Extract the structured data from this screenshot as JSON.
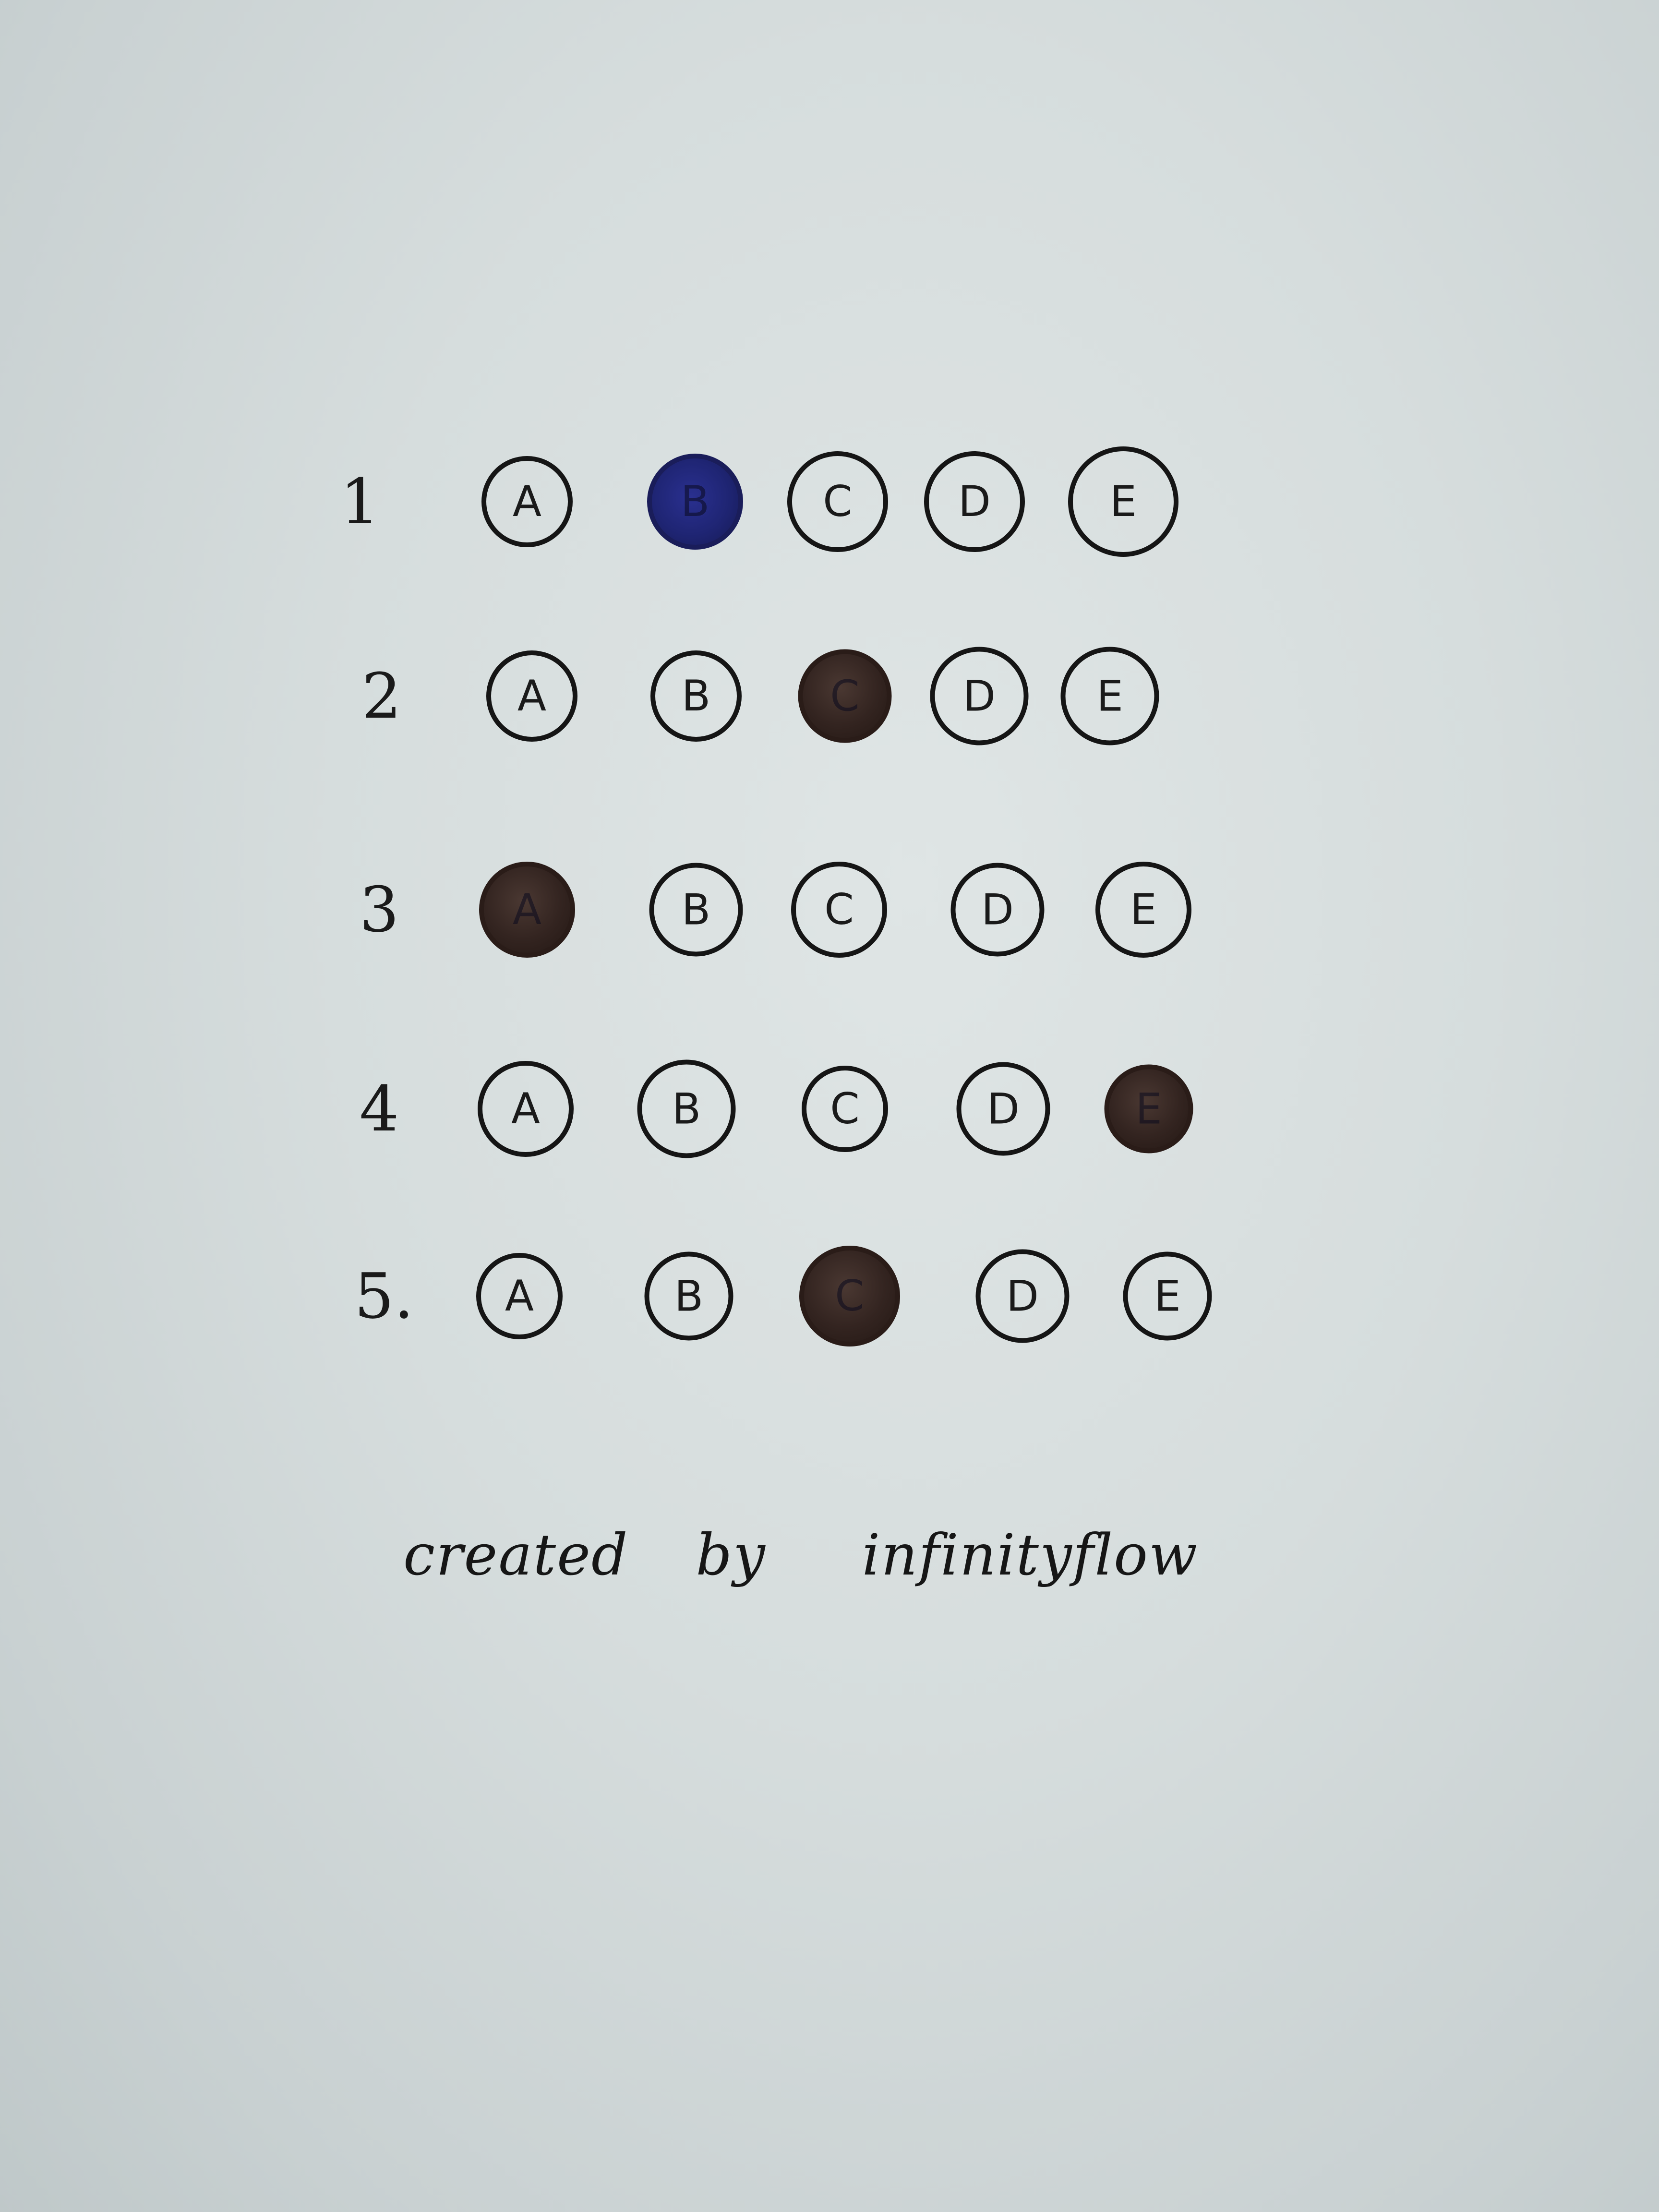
{
  "colors": {
    "paper": "#d6dddd",
    "ink": "#151515",
    "fill_brown": "#332420",
    "fill_blue": "#1f2574"
  },
  "questions": [
    {
      "number": "1",
      "options": [
        "A",
        "B",
        "C",
        "D",
        "E"
      ],
      "marked": "B",
      "marked_color": "blue"
    },
    {
      "number": "2",
      "options": [
        "A",
        "B",
        "C",
        "D",
        "E"
      ],
      "marked": "C",
      "marked_color": "brown"
    },
    {
      "number": "3",
      "options": [
        "A",
        "B",
        "C",
        "D",
        "E"
      ],
      "marked": "A",
      "marked_color": "brown"
    },
    {
      "number": "4",
      "options": [
        "A",
        "B",
        "C",
        "D",
        "E"
      ],
      "marked": "E",
      "marked_color": "brown"
    },
    {
      "number": "5.",
      "options": [
        "A",
        "B",
        "C",
        "D",
        "E"
      ],
      "marked": "C",
      "marked_color": "brown"
    }
  ],
  "signature": {
    "created": "created",
    "by": "by",
    "name": "infinityflow"
  }
}
